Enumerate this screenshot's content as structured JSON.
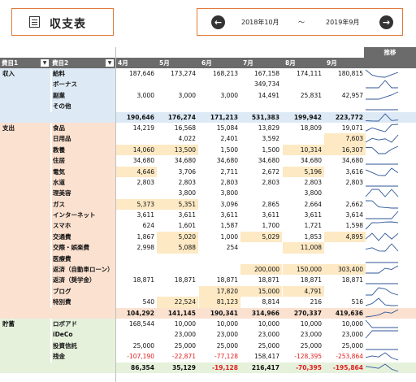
{
  "header": {
    "title": "収支表",
    "period_start": "2018年10月",
    "period_sep": "～",
    "period_end": "2019年9月"
  },
  "columns": {
    "cat1": "費目1",
    "cat2": "費目2",
    "months": [
      "4月",
      "5月",
      "6月",
      "7月",
      "8月",
      "9月"
    ],
    "trend": "推移"
  },
  "sections": [
    {
      "name": "収入",
      "bg": "#ddeaf6",
      "rows": [
        {
          "label": "給料",
          "v": [
            "187,646",
            "173,274",
            "168,213",
            "167,158",
            "174,111",
            "180,815"
          ],
          "hl": []
        },
        {
          "label": "ボーナス",
          "v": [
            "",
            "",
            "",
            "349,734",
            "",
            ""
          ],
          "hl": []
        },
        {
          "label": "副業",
          "v": [
            "3,000",
            "3,000",
            "3,000",
            "14,491",
            "25,831",
            "42,957"
          ],
          "hl": []
        },
        {
          "label": "その他",
          "v": [
            "",
            "",
            "",
            "",
            "",
            ""
          ],
          "hl": []
        }
      ],
      "total": {
        "v": [
          "190,646",
          "176,274",
          "171,213",
          "531,383",
          "199,942",
          "223,772"
        ],
        "cls": "tot"
      }
    },
    {
      "name": "支出",
      "bg": "#fbe1d0",
      "rows": [
        {
          "label": "食品",
          "v": [
            "14,219",
            "16,568",
            "15,084",
            "13,829",
            "18,809",
            "19,071"
          ],
          "hl": []
        },
        {
          "label": "日用品",
          "v": [
            "",
            "4,022",
            "2,401",
            "3,592",
            "",
            "7,603"
          ],
          "hl": [
            5
          ]
        },
        {
          "label": "教養",
          "v": [
            "14,060",
            "13,500",
            "1,500",
            "1,500",
            "10,314",
            "16,307"
          ],
          "hl": [
            0,
            1,
            4,
            5
          ]
        },
        {
          "label": "住居",
          "v": [
            "34,680",
            "34,680",
            "34,680",
            "34,680",
            "34,680",
            "34,680"
          ],
          "hl": []
        },
        {
          "label": "電気",
          "v": [
            "4,646",
            "3,706",
            "2,711",
            "2,672",
            "5,196",
            "3,616"
          ],
          "hl": [
            0,
            4
          ]
        },
        {
          "label": "水道",
          "v": [
            "2,803",
            "2,803",
            "2,803",
            "2,803",
            "2,803",
            "2,803"
          ],
          "hl": []
        },
        {
          "label": "理美容",
          "v": [
            "",
            "3,800",
            "3,800",
            "",
            "3,800",
            ""
          ],
          "hl": []
        },
        {
          "label": "ガス",
          "v": [
            "5,373",
            "5,351",
            "3,096",
            "2,865",
            "2,664",
            "2,662"
          ],
          "hl": [
            0,
            1
          ]
        },
        {
          "label": "インターネット",
          "v": [
            "3,611",
            "3,611",
            "3,611",
            "3,611",
            "3,611",
            "3,614"
          ],
          "hl": []
        },
        {
          "label": "スマホ",
          "v": [
            "624",
            "1,601",
            "1,587",
            "1,700",
            "1,721",
            "1,598"
          ],
          "hl": []
        },
        {
          "label": "交通費",
          "v": [
            "1,867",
            "5,020",
            "1,000",
            "5,029",
            "1,853",
            "4,895"
          ],
          "hl": [
            1,
            3,
            5
          ]
        },
        {
          "label": "交際・娯楽費",
          "v": [
            "2,998",
            "5,088",
            "254",
            "",
            "11,008",
            ""
          ],
          "hl": [
            1,
            4
          ]
        },
        {
          "label": "医療費",
          "v": [
            "",
            "",
            "",
            "",
            "",
            ""
          ],
          "hl": []
        },
        {
          "label": "返済（自動車ローン）",
          "v": [
            "",
            "",
            "",
            "200,000",
            "150,000",
            "303,400"
          ],
          "hl": [
            3,
            4,
            5
          ]
        },
        {
          "label": "返済（奨学金）",
          "v": [
            "18,871",
            "18,871",
            "18,871",
            "18,871",
            "18,871",
            "18,871"
          ],
          "hl": []
        },
        {
          "label": "ブログ",
          "v": [
            "",
            "",
            "17,820",
            "15,000",
            "4,791",
            ""
          ],
          "hl": [
            2,
            3,
            4
          ]
        },
        {
          "label": "特別費",
          "v": [
            "540",
            "22,524",
            "81,123",
            "8,814",
            "216",
            "516"
          ],
          "hl": [
            1,
            2
          ]
        }
      ],
      "total": {
        "v": [
          "104,292",
          "141,145",
          "190,341",
          "314,966",
          "270,337",
          "419,636"
        ],
        "cls": "tot2"
      }
    },
    {
      "name": "貯蓄",
      "bg": "#e6f1dc",
      "rows": [
        {
          "label": "ロボアド",
          "v": [
            "168,544",
            "10,000",
            "10,000",
            "10,000",
            "10,000",
            "10,000"
          ],
          "hl": []
        },
        {
          "label": "iDeCo",
          "v": [
            "",
            "23,000",
            "23,000",
            "23,000",
            "23,000",
            "23,000"
          ],
          "hl": []
        },
        {
          "label": "投資信託",
          "v": [
            "25,000",
            "25,000",
            "25,000",
            "25,000",
            "25,000",
            "25,000"
          ],
          "hl": []
        },
        {
          "label": "残金",
          "v": [
            "-107,190",
            "-22,871",
            "-77,128",
            "158,417",
            "-128,395",
            "-253,864"
          ],
          "hl": []
        }
      ],
      "total": {
        "v": [
          "86,354",
          "35,129",
          "-19,128",
          "216,417",
          "-70,395",
          "-195,864"
        ],
        "cls": "tot3"
      }
    }
  ],
  "colors": {
    "accent": "#e07a3a",
    "header_bg": "#6b6b6b",
    "highlight": "#fde9c4",
    "negative": "#e02020",
    "sparkline": "#2f5597"
  }
}
